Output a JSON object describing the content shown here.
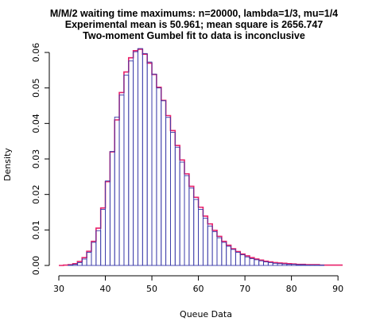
{
  "chart_data": {
    "type": "bar",
    "title_lines": [
      "M/M/2 waiting time maximums: n=20000, lambda=1/3, mu=1/4",
      "Experimental mean is 50.961; mean square is 2656.747",
      "Two-moment Gumbel fit to data is inconclusive"
    ],
    "xlabel": "Queue Data",
    "ylabel": "Density",
    "xlim": [
      30,
      91
    ],
    "ylim": [
      0,
      0.06
    ],
    "x_ticks": [
      30,
      40,
      50,
      60,
      70,
      80,
      90
    ],
    "y_ticks": [
      0.0,
      0.01,
      0.02,
      0.03,
      0.04,
      0.05,
      0.06
    ],
    "y_tick_labels": [
      "0.00",
      "0.01",
      "0.02",
      "0.03",
      "0.04",
      "0.05",
      "0.06"
    ],
    "grid": false,
    "legend": "none",
    "bin_width": 1,
    "bin_starts": [
      30,
      31,
      32,
      33,
      34,
      35,
      36,
      37,
      38,
      39,
      40,
      41,
      42,
      43,
      44,
      45,
      46,
      47,
      48,
      49,
      50,
      51,
      52,
      53,
      54,
      55,
      56,
      57,
      58,
      59,
      60,
      61,
      62,
      63,
      64,
      65,
      66,
      67,
      68,
      69,
      70,
      71,
      72,
      73,
      74,
      75,
      76,
      77,
      78,
      79,
      80,
      81,
      82,
      83,
      84,
      85,
      86,
      87,
      88,
      89,
      90
    ],
    "series": [
      {
        "type": "histogram",
        "color": "#3a3aa8",
        "values": [
          0.0,
          0.0,
          0.0001,
          0.0003,
          0.0008,
          0.0018,
          0.0037,
          0.0065,
          0.0098,
          0.0158,
          0.0238,
          0.0321,
          0.0418,
          0.048,
          0.0536,
          0.0576,
          0.0602,
          0.0611,
          0.0597,
          0.0573,
          0.0539,
          0.05,
          0.0464,
          0.0417,
          0.0375,
          0.0333,
          0.0291,
          0.0253,
          0.0218,
          0.0186,
          0.0158,
          0.0133,
          0.0111,
          0.0095,
          0.0078,
          0.0065,
          0.0054,
          0.0045,
          0.0037,
          0.003,
          0.0024,
          0.0019,
          0.0016,
          0.0013,
          0.001,
          0.0008,
          0.0006,
          0.0005,
          0.0004,
          0.0003,
          0.0003,
          0.0002,
          0.0002,
          0.0001,
          0.0001,
          0.0001,
          0.0001,
          0.0,
          0.0,
          0.0,
          0.0
        ]
      },
      {
        "type": "fitted-step",
        "color": "#e8206a",
        "values": [
          0.0,
          0.0001,
          0.0002,
          0.0005,
          0.0011,
          0.0022,
          0.004,
          0.0068,
          0.0105,
          0.0162,
          0.0236,
          0.032,
          0.041,
          0.0487,
          0.0545,
          0.0585,
          0.0605,
          0.0609,
          0.0595,
          0.057,
          0.0538,
          0.0502,
          0.0465,
          0.0422,
          0.038,
          0.0338,
          0.0297,
          0.0258,
          0.0223,
          0.0192,
          0.0164,
          0.0139,
          0.0117,
          0.0099,
          0.0082,
          0.0068,
          0.0057,
          0.0047,
          0.0039,
          0.0032,
          0.0027,
          0.0022,
          0.0018,
          0.0015,
          0.0012,
          0.001,
          0.0008,
          0.0007,
          0.0006,
          0.0005,
          0.0004,
          0.0003,
          0.0003,
          0.0002,
          0.0002,
          0.0002,
          0.0001,
          0.0001,
          0.0001,
          0.0001,
          0.0001
        ]
      }
    ]
  }
}
